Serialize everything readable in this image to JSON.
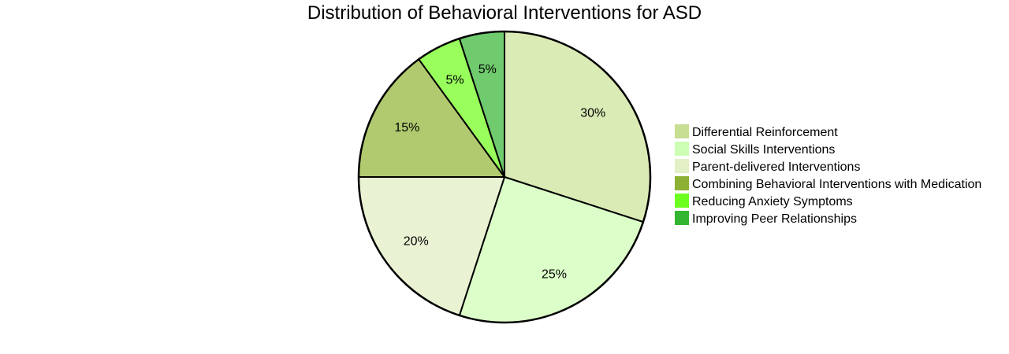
{
  "chart_data": {
    "type": "pie",
    "title": "Distribution of Behavioral Interventions for ASD",
    "legend_position": "right",
    "slices": [
      {
        "label": "Differential Reinforcement",
        "value": 30,
        "display": "30%",
        "color": "#dbebb5",
        "legend_color": "#c8de92"
      },
      {
        "label": "Social Skills Interventions",
        "value": 25,
        "display": "25%",
        "color": "#dcffc9",
        "legend_color": "#ccffb3"
      },
      {
        "label": "Parent-delivered Interventions",
        "value": 20,
        "display": "20%",
        "color": "#e9f3d3",
        "legend_color": "#e3efc4"
      },
      {
        "label": "Combining Behavioral Interventions with Medication",
        "value": 15,
        "display": "15%",
        "color": "#b1ca6f",
        "legend_color": "#8db135"
      },
      {
        "label": "Reducing Anxiety Symptoms",
        "value": 5,
        "display": "5%",
        "color": "#99ff5c",
        "legend_color": "#6cff1f"
      },
      {
        "label": "Improving Peer Relationships",
        "value": 5,
        "display": "5%",
        "color": "#6fcb6d",
        "legend_color": "#34b531"
      }
    ]
  }
}
